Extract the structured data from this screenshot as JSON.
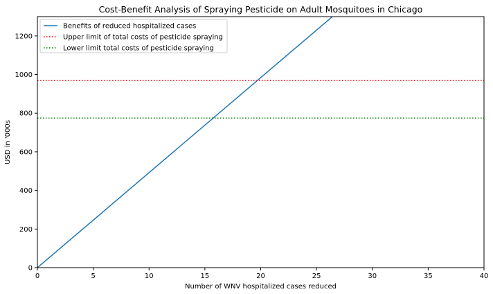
{
  "chart_data": {
    "type": "line",
    "title": "Cost-Benefit Analysis of Spraying Pesticide on Adult Mosquitoes in Chicago",
    "xlabel": "Number of WNV hospitalized cases reduced",
    "ylabel": "USD in '000s",
    "xlim": [
      0,
      40
    ],
    "ylim": [
      0,
      1300
    ],
    "xticks": [
      0,
      5,
      10,
      15,
      20,
      25,
      30,
      35,
      40
    ],
    "yticks": [
      0,
      200,
      400,
      600,
      800,
      1000,
      1200
    ],
    "grid": false,
    "legend_position": "top-left",
    "series": [
      {
        "name": "Benefits of reduced hospitalized cases",
        "kind": "line",
        "style": "solid",
        "color": "#1f77b4",
        "x": [
          0,
          40
        ],
        "y": [
          0,
          1968
        ]
      },
      {
        "name": "Upper limit of total costs of pesticide spraying",
        "kind": "hline",
        "style": "dotted",
        "color": "#ff0000",
        "y": 969
      },
      {
        "name": "Lower limit total costs of pesticide spraying",
        "kind": "hline",
        "style": "dotted",
        "color": "#008000",
        "y": 775
      }
    ]
  }
}
